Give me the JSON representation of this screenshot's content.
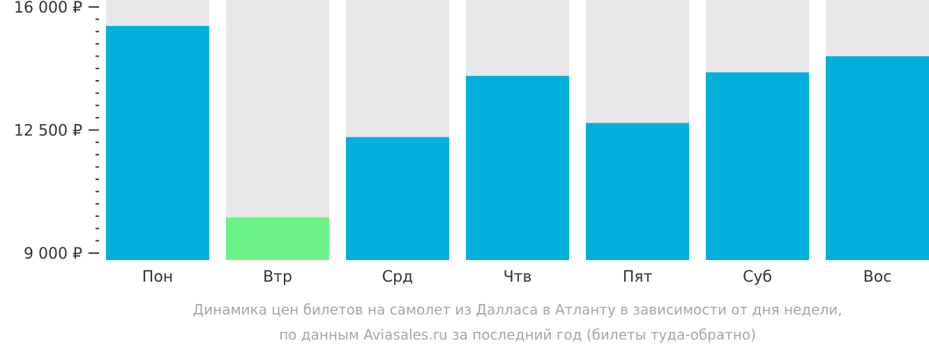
{
  "chart_data": {
    "type": "bar",
    "categories": [
      "Пон",
      "Втр",
      "Срд",
      "Чтв",
      "Пят",
      "Суб",
      "Вос"
    ],
    "values": [
      15460,
      10020,
      12300,
      14040,
      12700,
      14140,
      14600
    ],
    "lowest_index": 1,
    "ylim": [
      9000,
      16000
    ],
    "yticks": [
      {
        "value": 16000,
        "label": "16 000 ₽"
      },
      {
        "value": 12500,
        "label": "12 500 ₽"
      },
      {
        "value": 9000,
        "label": "9 000 ₽"
      }
    ],
    "minor_tick_step": 700,
    "colors": {
      "bar": "#00b0dc",
      "lowest_bar": "#6cf387",
      "bar_background": "#e8e8e8",
      "axis": "#333333"
    }
  },
  "caption": {
    "line1": "Динамика цен билетов на самолет из Далласа в Атланту в зависимости от дня недели,",
    "line2": "по данным Aviasales.ru за последний год (билеты туда-обратно)"
  }
}
